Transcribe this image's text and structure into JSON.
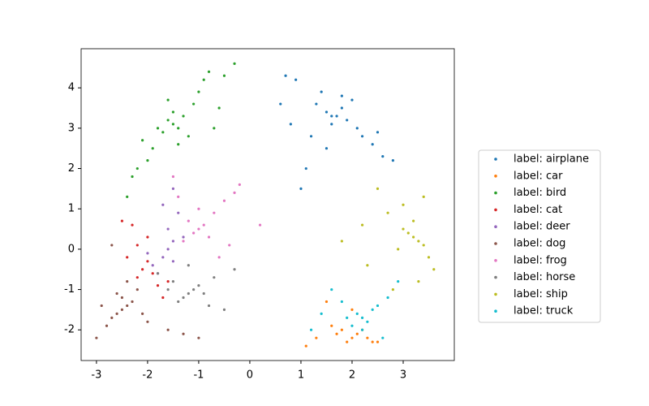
{
  "chart_data": {
    "type": "scatter",
    "xlim": [
      -3.3,
      4.0
    ],
    "ylim": [
      -2.76,
      4.97
    ],
    "xticks": [
      -3,
      -2,
      -1,
      0,
      1,
      2,
      3
    ],
    "yticks": [
      -2,
      -1,
      0,
      1,
      2,
      3,
      4
    ],
    "legend": "right",
    "series": [
      {
        "name": "label: airplane",
        "color": "#1f77b4",
        "x": [
          1.7,
          1.5,
          1.9,
          1.6,
          1.8,
          1.3,
          2.1,
          1.4,
          2.0,
          1.2,
          0.9,
          0.7,
          1.1,
          2.4,
          2.6,
          2.8,
          1.0,
          0.8,
          1.5,
          2.2,
          1.8,
          1.6,
          0.6,
          2.5
        ],
        "y": [
          3.3,
          3.4,
          3.2,
          3.1,
          3.5,
          3.6,
          3.0,
          3.9,
          3.7,
          2.8,
          4.2,
          4.3,
          2.0,
          2.6,
          2.3,
          2.2,
          1.5,
          3.1,
          2.5,
          2.8,
          3.8,
          3.3,
          3.6,
          2.9
        ]
      },
      {
        "name": "label: car",
        "color": "#ff7f0e",
        "x": [
          2.1,
          2.0,
          2.3,
          1.8,
          2.4,
          1.9,
          2.2,
          1.3,
          1.5,
          1.6,
          2.5,
          1.1,
          2.0,
          1.7
        ],
        "y": [
          -2.1,
          -2.2,
          -2.2,
          -2.0,
          -2.3,
          -2.3,
          -2.0,
          -2.2,
          -1.3,
          -1.9,
          -2.3,
          -2.4,
          -1.5,
          -2.1
        ]
      },
      {
        "name": "label: bird",
        "color": "#2ca02c",
        "x": [
          -1.5,
          -1.4,
          -1.6,
          -1.3,
          -1.7,
          -1.5,
          -1.2,
          -1.8,
          -1.9,
          -2.0,
          -2.2,
          -2.3,
          -2.4,
          -1.0,
          -0.9,
          -0.8,
          -0.6,
          -0.3,
          -0.5,
          -1.1,
          -1.4,
          -2.1,
          -0.7,
          -1.6
        ],
        "y": [
          3.1,
          3.0,
          3.2,
          3.3,
          2.9,
          3.4,
          2.8,
          3.0,
          2.5,
          2.2,
          2.0,
          1.8,
          1.3,
          3.9,
          4.2,
          4.4,
          3.5,
          4.6,
          4.3,
          3.6,
          2.6,
          2.7,
          3.0,
          3.7
        ]
      },
      {
        "name": "label: cat",
        "color": "#d62728",
        "x": [
          -2.1,
          -2.0,
          -2.2,
          -1.9,
          -2.3,
          -2.2,
          -1.8,
          -1.7,
          -2.4,
          -2.0,
          -2.5,
          -1.6
        ],
        "y": [
          -0.5,
          -0.3,
          -0.7,
          -0.6,
          0.6,
          0.1,
          -0.9,
          -1.2,
          -0.2,
          0.3,
          0.7,
          -0.8
        ]
      },
      {
        "name": "label: deer",
        "color": "#9467bd",
        "x": [
          -1.6,
          -1.5,
          -1.7,
          -1.8,
          -1.5,
          -1.4,
          -1.9,
          -1.6,
          -1.3,
          -2.0,
          -1.7,
          -1.5
        ],
        "y": [
          0.0,
          0.2,
          -0.2,
          -0.6,
          1.5,
          0.9,
          -0.4,
          0.5,
          0.3,
          -0.1,
          1.1,
          -0.3
        ]
      },
      {
        "name": "label: dog",
        "color": "#8c564b",
        "x": [
          -2.5,
          -2.4,
          -2.6,
          -2.3,
          -2.7,
          -2.5,
          -2.8,
          -3.0,
          -2.7,
          -2.2,
          -2.0,
          -1.6,
          -1.0,
          -2.4,
          -2.6,
          -2.9,
          -2.1,
          -1.3
        ],
        "y": [
          -1.5,
          -1.4,
          -1.6,
          -1.3,
          -1.7,
          -1.2,
          -1.9,
          -2.2,
          0.1,
          -1.0,
          -1.8,
          -2.0,
          -2.2,
          -0.8,
          -1.1,
          -1.4,
          -1.6,
          -2.1
        ]
      },
      {
        "name": "label: frog",
        "color": "#e377c2",
        "x": [
          -1.0,
          -1.1,
          -0.9,
          -1.2,
          -0.8,
          -1.3,
          -0.7,
          -0.3,
          -1.5,
          0.2,
          -0.5,
          -0.6,
          -1.0,
          -0.4,
          -1.4,
          -0.2
        ],
        "y": [
          0.5,
          0.4,
          0.6,
          0.7,
          0.3,
          0.2,
          0.9,
          1.4,
          1.8,
          0.6,
          1.2,
          -0.2,
          1.0,
          0.1,
          1.3,
          1.6
        ]
      },
      {
        "name": "label: horse",
        "color": "#7f7f7f",
        "x": [
          -1.2,
          -1.1,
          -1.3,
          -1.0,
          -1.4,
          -0.9,
          -1.5,
          -0.5,
          -1.8,
          -0.3,
          -0.8,
          -1.6,
          -0.7,
          -1.2
        ],
        "y": [
          -1.1,
          -1.0,
          -1.2,
          -0.9,
          -1.3,
          -1.1,
          -0.8,
          -1.5,
          -0.6,
          -0.5,
          -1.4,
          -1.0,
          -0.7,
          -0.4
        ]
      },
      {
        "name": "label: ship",
        "color": "#bcbd22",
        "x": [
          3.2,
          3.1,
          3.3,
          3.0,
          3.4,
          3.2,
          2.9,
          3.5,
          2.5,
          3.6,
          1.8,
          3.4,
          2.7,
          2.3,
          3.3,
          2.2,
          3.0,
          2.8
        ],
        "y": [
          0.3,
          0.4,
          0.2,
          0.5,
          0.1,
          0.7,
          0.0,
          -0.2,
          1.5,
          -0.5,
          0.2,
          1.3,
          0.9,
          -0.4,
          -0.8,
          0.6,
          1.1,
          -1.0
        ]
      },
      {
        "name": "label: truck",
        "color": "#17becf",
        "x": [
          2.2,
          2.1,
          2.3,
          2.0,
          2.4,
          1.9,
          2.5,
          1.6,
          2.7,
          1.2,
          2.6,
          1.8,
          2.2,
          1.4,
          2.9
        ],
        "y": [
          -1.7,
          -1.6,
          -1.8,
          -1.9,
          -1.5,
          -1.7,
          -1.4,
          -1.0,
          -1.2,
          -2.0,
          -2.2,
          -1.3,
          -2.0,
          -1.6,
          -0.8
        ]
      }
    ]
  }
}
